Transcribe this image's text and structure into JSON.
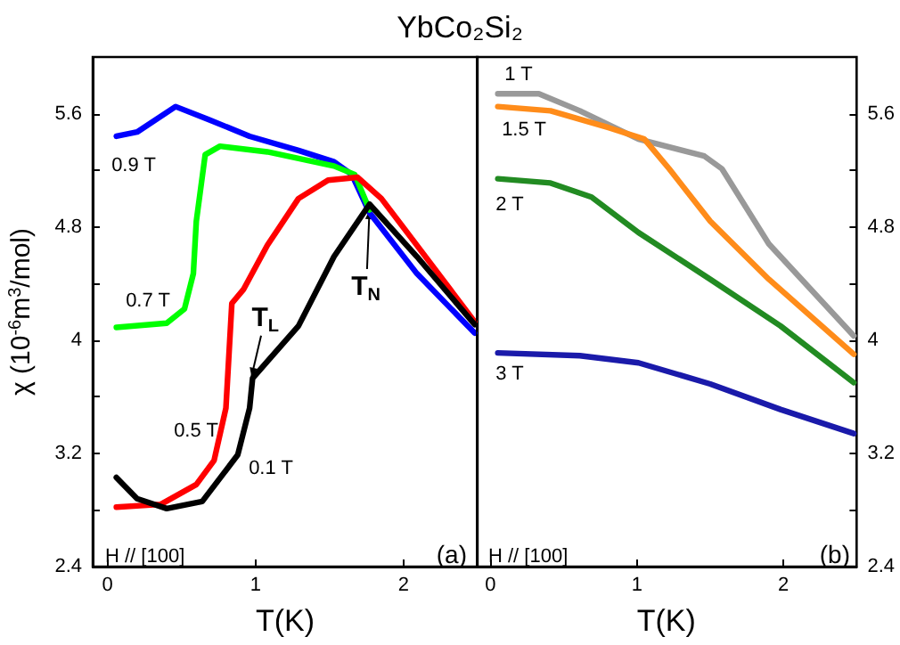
{
  "chart_data": [
    {
      "type": "line",
      "title": "YbCo₂Si₂",
      "xlabel": "T(K)",
      "ylabel": "χ (10$^{-6}$m$^{3}$/mol)",
      "xlim": [
        -0.1,
        2.5
      ],
      "xticks": [
        0,
        1,
        2
      ],
      "ylim": [
        2.4,
        6.0
      ],
      "yticks": [
        2.4,
        {
          "value": 2.8,
          "label": null
        },
        3.2,
        {
          "value": 3.6,
          "label": null
        },
        4.0,
        {
          "value": 4.4,
          "label": null
        },
        4.8,
        {
          "value": 5.2,
          "label": null
        },
        5.6
      ],
      "grid": false,
      "marker": "none",
      "line_style": "solid",
      "series": [
        {
          "color": "#0000ff",
          "x": [
            0.06,
            0.2,
            0.46,
            0.68,
            0.96,
            1.29,
            1.53,
            1.65,
            1.77,
            2.09,
            2.48
          ],
          "values": [
            5.44,
            5.47,
            5.65,
            5.56,
            5.44,
            5.34,
            5.26,
            5.17,
            4.9,
            4.47,
            4.05
          ]
        },
        {
          "color": "#00ff00",
          "x": [
            0.06,
            0.4,
            0.52,
            0.58,
            0.6,
            0.66,
            0.76,
            1.08,
            1.53,
            1.67,
            1.77
          ],
          "values": [
            4.09,
            4.12,
            4.22,
            4.47,
            4.84,
            5.31,
            5.37,
            5.33,
            5.23,
            5.17,
            4.92
          ]
        },
        {
          "color": "#ff0000",
          "x": [
            0.06,
            0.36,
            0.6,
            0.72,
            0.8,
            0.84,
            0.92,
            1.08,
            1.29,
            1.49,
            1.69,
            1.85,
            2.09,
            2.48
          ],
          "values": [
            2.82,
            2.84,
            2.98,
            3.15,
            3.52,
            4.26,
            4.36,
            4.67,
            5.0,
            5.13,
            5.15,
            5.0,
            4.67,
            4.13
          ]
        },
        {
          "color": "#000000",
          "x": [
            0.06,
            0.2,
            0.4,
            0.64,
            0.88,
            0.96,
            0.98,
            1.08,
            1.29,
            1.53,
            1.77,
            2.09,
            2.48
          ],
          "values": [
            3.03,
            2.88,
            2.81,
            2.86,
            3.19,
            3.52,
            3.73,
            3.85,
            4.1,
            4.59,
            4.96,
            4.59,
            4.11
          ]
        }
      ],
      "annotations": [
        "0.9 T",
        "0.7 T",
        "0.5 T",
        "0.1 T",
        {
          "text": "T$_{L}$",
          "x": 0.97,
          "y": 3.73
        },
        {
          "text": "T$_{N}$",
          "x": 1.77,
          "y": 4.93
        },
        "H // [100]",
        "(a)"
      ]
    },
    {
      "type": "line",
      "xlabel": "T(K)",
      "xlim": [
        -0.1,
        2.5
      ],
      "xticks": [
        0,
        1,
        2
      ],
      "ylim": [
        2.4,
        6.0
      ],
      "yticks": [
        2.4,
        {
          "value": 2.8,
          "label": null
        },
        3.2,
        {
          "value": 3.6,
          "label": null
        },
        4.0,
        {
          "value": 4.4,
          "label": null
        },
        4.8,
        {
          "value": 5.2,
          "label": null
        },
        5.6
      ],
      "grid": false,
      "marker": "none",
      "line_style": "solid",
      "series": [
        {
          "color": "#999999",
          "x": [
            0.05,
            0.33,
            0.61,
            1.01,
            1.46,
            1.58,
            1.9,
            2.48
          ],
          "values": [
            5.74,
            5.74,
            5.62,
            5.42,
            5.3,
            5.21,
            4.68,
            4.03
          ]
        },
        {
          "color": "#ff8c1a",
          "x": [
            0.05,
            0.41,
            0.81,
            1.05,
            1.22,
            1.5,
            1.9,
            2.48
          ],
          "values": [
            5.65,
            5.62,
            5.5,
            5.42,
            5.21,
            4.84,
            4.43,
            3.9
          ]
        },
        {
          "color": "#228b22",
          "x": [
            0.05,
            0.41,
            0.69,
            1.01,
            1.5,
            1.98,
            2.48
          ],
          "values": [
            5.14,
            5.11,
            5.01,
            4.76,
            4.43,
            4.1,
            3.7
          ]
        },
        {
          "color": "#1a1aaa",
          "x": [
            0.05,
            0.61,
            1.01,
            1.5,
            1.98,
            2.48
          ],
          "values": [
            3.91,
            3.89,
            3.84,
            3.69,
            3.51,
            3.34
          ]
        }
      ],
      "annotations": [
        "1 T",
        "1.5 T",
        "2 T",
        "3 T",
        "H // [100]",
        "(b)"
      ]
    }
  ]
}
